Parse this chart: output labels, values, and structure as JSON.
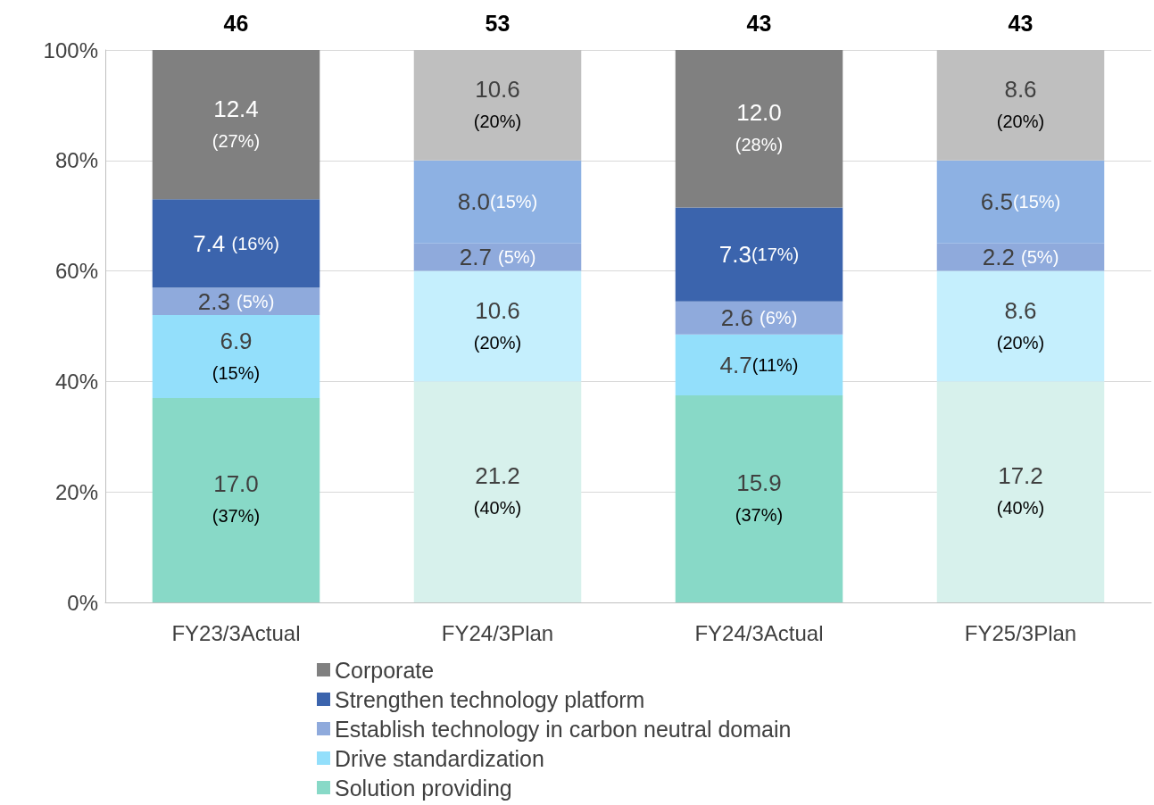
{
  "chart_data": {
    "type": "bar",
    "stacked": true,
    "categories": [
      "FY23/3Actual",
      "FY24/3Plan",
      "FY24/3Actual",
      "FY25/3Plan"
    ],
    "ylim": [
      0,
      100
    ],
    "yticks": [
      {
        "value": 0,
        "label": "0%"
      },
      {
        "value": 20,
        "label": "20%"
      },
      {
        "value": 40,
        "label": "40%"
      },
      {
        "value": 60,
        "label": "60%"
      },
      {
        "value": 80,
        "label": "80%"
      },
      {
        "value": 100,
        "label": "100%"
      }
    ],
    "grid": "y",
    "legend": "bottom",
    "annotations": [
      {
        "text": "46",
        "x": "FY23/3Actual",
        "y": 100
      },
      {
        "text": "53",
        "x": "FY24/3Plan",
        "y": 100
      },
      {
        "text": "43",
        "x": "FY24/3Actual",
        "y": 100
      },
      {
        "text": "43",
        "x": "FY25/3Plan",
        "y": 100
      }
    ],
    "series": [
      {
        "name": "Solution providing",
        "color": "#88d9c7",
        "colors": [
          "#88d9c7",
          "#d7f1ec",
          "#88d9c7",
          "#d7f1ec"
        ],
        "values": [
          37,
          40,
          37.5,
          40
        ],
        "value_labels": [
          "17.0\n(37%)",
          "21.2\n(40%)",
          "15.9\n(37%)",
          "17.2\n(40%)"
        ]
      },
      {
        "name": "Drive standardization",
        "color": "#93dffb",
        "colors": [
          "#93dffb",
          "#c5effd",
          "#93dffb",
          "#c5effd"
        ],
        "values": [
          15,
          20,
          11,
          20
        ],
        "value_labels": [
          "6.9\n(15%)",
          "10.6\n(20%)",
          "4.7(11%)",
          "8.6\n(20%)"
        ]
      },
      {
        "name": "Establish technology in carbon neutral domain",
        "color": "#8faadc",
        "colors": [
          "#8faadc",
          "#8faadc",
          "#8faadc",
          "#8faadc"
        ],
        "values": [
          5,
          5,
          6,
          5
        ],
        "value_labels": [
          "2.3 (5%)",
          "2.7 (5%)",
          "2.6 (6%)",
          "2.2 (5%)"
        ]
      },
      {
        "name": "Strengthen technology platform",
        "color": "#3b64ad",
        "colors": [
          "#3b64ad",
          "#8db1e3",
          "#3b64ad",
          "#8db1e3"
        ],
        "values": [
          16,
          15,
          17,
          15
        ],
        "value_labels": [
          "7.4 (16%)",
          "8.0(15%)",
          "7.3(17%)",
          "6.5(15%)"
        ]
      },
      {
        "name": "Corporate",
        "color": "#808080",
        "colors": [
          "#808080",
          "#bfbfbf",
          "#808080",
          "#bfbfbf"
        ],
        "values": [
          27,
          20,
          28.5,
          20
        ],
        "value_labels": [
          "12.4\n(27%)",
          "10.6\n(20%)",
          "12.0\n(28%)",
          "8.6\n(20%)"
        ]
      }
    ]
  }
}
